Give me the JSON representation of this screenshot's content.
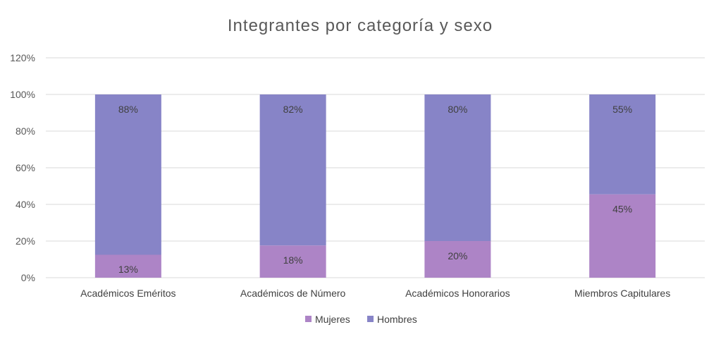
{
  "chart_data": {
    "type": "bar",
    "stacked": true,
    "title": "Integrantes por categoría y sexo",
    "categories": [
      "Académicos Eméritos",
      "Académicos de Número",
      "Académicos Honorarios",
      "Miembros Capitulares"
    ],
    "series": [
      {
        "name": "Mujeres",
        "values": [
          12.5,
          17.6,
          20,
          45.5
        ],
        "labels": [
          "13%",
          "18%",
          "20%",
          "45%"
        ],
        "color": "#ad84c6"
      },
      {
        "name": "Hombres",
        "values": [
          87.5,
          82.4,
          80,
          54.5
        ],
        "labels": [
          "88%",
          "82%",
          "80%",
          "55%"
        ],
        "color": "#8784c7"
      }
    ],
    "ylim": [
      0,
      120
    ],
    "yticks": [
      0,
      20,
      40,
      60,
      80,
      100,
      120
    ],
    "ytick_labels": [
      "0%",
      "20%",
      "40%",
      "60%",
      "80%",
      "100%",
      "120%"
    ],
    "grid": true,
    "legend_position": "bottom"
  }
}
